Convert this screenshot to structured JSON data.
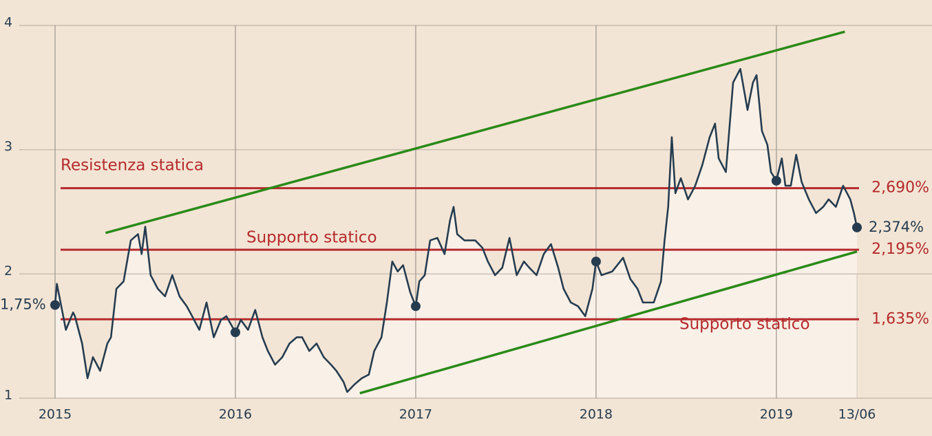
{
  "chart_data": {
    "type": "line",
    "x": [
      2015.0,
      2015.01,
      2015.06,
      2015.1,
      2015.11,
      2015.15,
      2015.18,
      2015.21,
      2015.25,
      2015.29,
      2015.31,
      2015.34,
      2015.38,
      2015.42,
      2015.46,
      2015.48,
      2015.5,
      2015.53,
      2015.57,
      2015.61,
      2015.65,
      2015.69,
      2015.73,
      2015.76,
      2015.8,
      2015.84,
      2015.88,
      2015.92,
      2015.95,
      2016.0,
      2016.03,
      2016.07,
      2016.11,
      2016.15,
      2016.18,
      2016.22,
      2016.26,
      2016.3,
      2016.34,
      2016.37,
      2016.41,
      2016.45,
      2016.49,
      2016.53,
      2016.56,
      2016.6,
      2016.62,
      2016.66,
      2016.7,
      2016.74,
      2016.77,
      2016.81,
      2016.84,
      2016.87,
      2016.9,
      2016.93,
      2016.97,
      2017.0,
      2017.02,
      2017.05,
      2017.08,
      2017.12,
      2017.16,
      2017.19,
      2017.21,
      2017.23,
      2017.27,
      2017.33,
      2017.37,
      2017.4,
      2017.44,
      2017.48,
      2017.52,
      2017.56,
      2017.6,
      2017.63,
      2017.67,
      2017.71,
      2017.75,
      2017.79,
      2017.82,
      2017.86,
      2017.9,
      2017.94,
      2017.98,
      2018.0,
      2018.03,
      2018.09,
      2018.15,
      2018.19,
      2018.23,
      2018.26,
      2018.32,
      2018.36,
      2018.38,
      2018.4,
      2018.42,
      2018.44,
      2018.47,
      2018.51,
      2018.55,
      2018.59,
      2018.63,
      2018.66,
      2018.68,
      2018.72,
      2018.76,
      2018.8,
      2018.84,
      2018.87,
      2018.89,
      2018.92,
      2018.95,
      2018.97,
      2019.0,
      2019.03,
      2019.05,
      2019.08,
      2019.11,
      2019.14,
      2019.18,
      2019.22,
      2019.26,
      2019.29,
      2019.33,
      2019.37,
      2019.41,
      2019.43,
      2019.447
    ],
    "series": [
      {
        "color": "#253c50",
        "values": [
          1.75,
          1.92,
          1.55,
          1.69,
          1.66,
          1.44,
          1.16,
          1.33,
          1.22,
          1.44,
          1.49,
          1.88,
          1.94,
          2.27,
          2.32,
          2.16,
          2.38,
          1.99,
          1.88,
          1.82,
          1.99,
          1.82,
          1.74,
          1.66,
          1.55,
          1.77,
          1.49,
          1.63,
          1.66,
          1.53,
          1.63,
          1.55,
          1.71,
          1.49,
          1.38,
          1.27,
          1.33,
          1.44,
          1.49,
          1.49,
          1.38,
          1.44,
          1.33,
          1.27,
          1.22,
          1.13,
          1.05,
          1.11,
          1.16,
          1.19,
          1.38,
          1.49,
          1.77,
          2.1,
          2.02,
          2.07,
          1.85,
          1.74,
          1.94,
          1.99,
          2.27,
          2.29,
          2.16,
          2.43,
          2.54,
          2.32,
          2.27,
          2.27,
          2.21,
          2.1,
          1.99,
          2.05,
          2.29,
          1.99,
          2.1,
          2.05,
          1.99,
          2.16,
          2.24,
          2.05,
          1.88,
          1.77,
          1.74,
          1.66,
          1.88,
          2.1,
          1.99,
          2.02,
          2.13,
          1.96,
          1.88,
          1.77,
          1.77,
          1.94,
          2.27,
          2.54,
          3.1,
          2.65,
          2.77,
          2.6,
          2.71,
          2.88,
          3.1,
          3.21,
          2.93,
          2.82,
          3.54,
          3.65,
          3.32,
          3.54,
          3.6,
          3.15,
          3.04,
          2.82,
          2.75,
          2.93,
          2.71,
          2.71,
          2.96,
          2.74,
          2.6,
          2.49,
          2.54,
          2.6,
          2.54,
          2.71,
          2.6,
          2.49,
          2.374
        ]
      }
    ],
    "points": [
      {
        "x": 2015,
        "value": 1.75,
        "label": "1,75%"
      },
      {
        "x": 2016,
        "value": 1.53
      },
      {
        "x": 2017,
        "value": 1.74
      },
      {
        "x": 2018,
        "value": 2.1
      },
      {
        "x": 2019,
        "value": 2.75
      },
      {
        "x": 2019.447,
        "value": 2.374,
        "label": "2,374%"
      }
    ],
    "levels": [
      {
        "value": 2.69,
        "label": "2,690%"
      },
      {
        "value": 2.195,
        "label": "2,195%"
      },
      {
        "value": 1.635,
        "label": "1,635%"
      }
    ],
    "level_color": "#b52a2c",
    "annotations": [
      "Resistenza statica",
      "Supporto statico",
      "Supporto statico"
    ],
    "trend_lines": [
      {
        "color": "#2a8a18",
        "x": [
          2015.28,
          2019.38
        ],
        "values": [
          2.33,
          3.95
        ]
      },
      {
        "color": "#2a8a18",
        "x": [
          2016.69,
          2019.447
        ],
        "values": [
          1.04,
          2.18
        ]
      }
    ],
    "xlim": [
      2015,
      2019.863
    ],
    "ylim": [
      1,
      4
    ],
    "xticks": [
      2015,
      2016,
      2017,
      2018,
      2019,
      {
        "value": 2019.447,
        "label": "13/06"
      }
    ],
    "yticks": [
      1,
      2,
      3,
      4
    ],
    "grid": true
  }
}
